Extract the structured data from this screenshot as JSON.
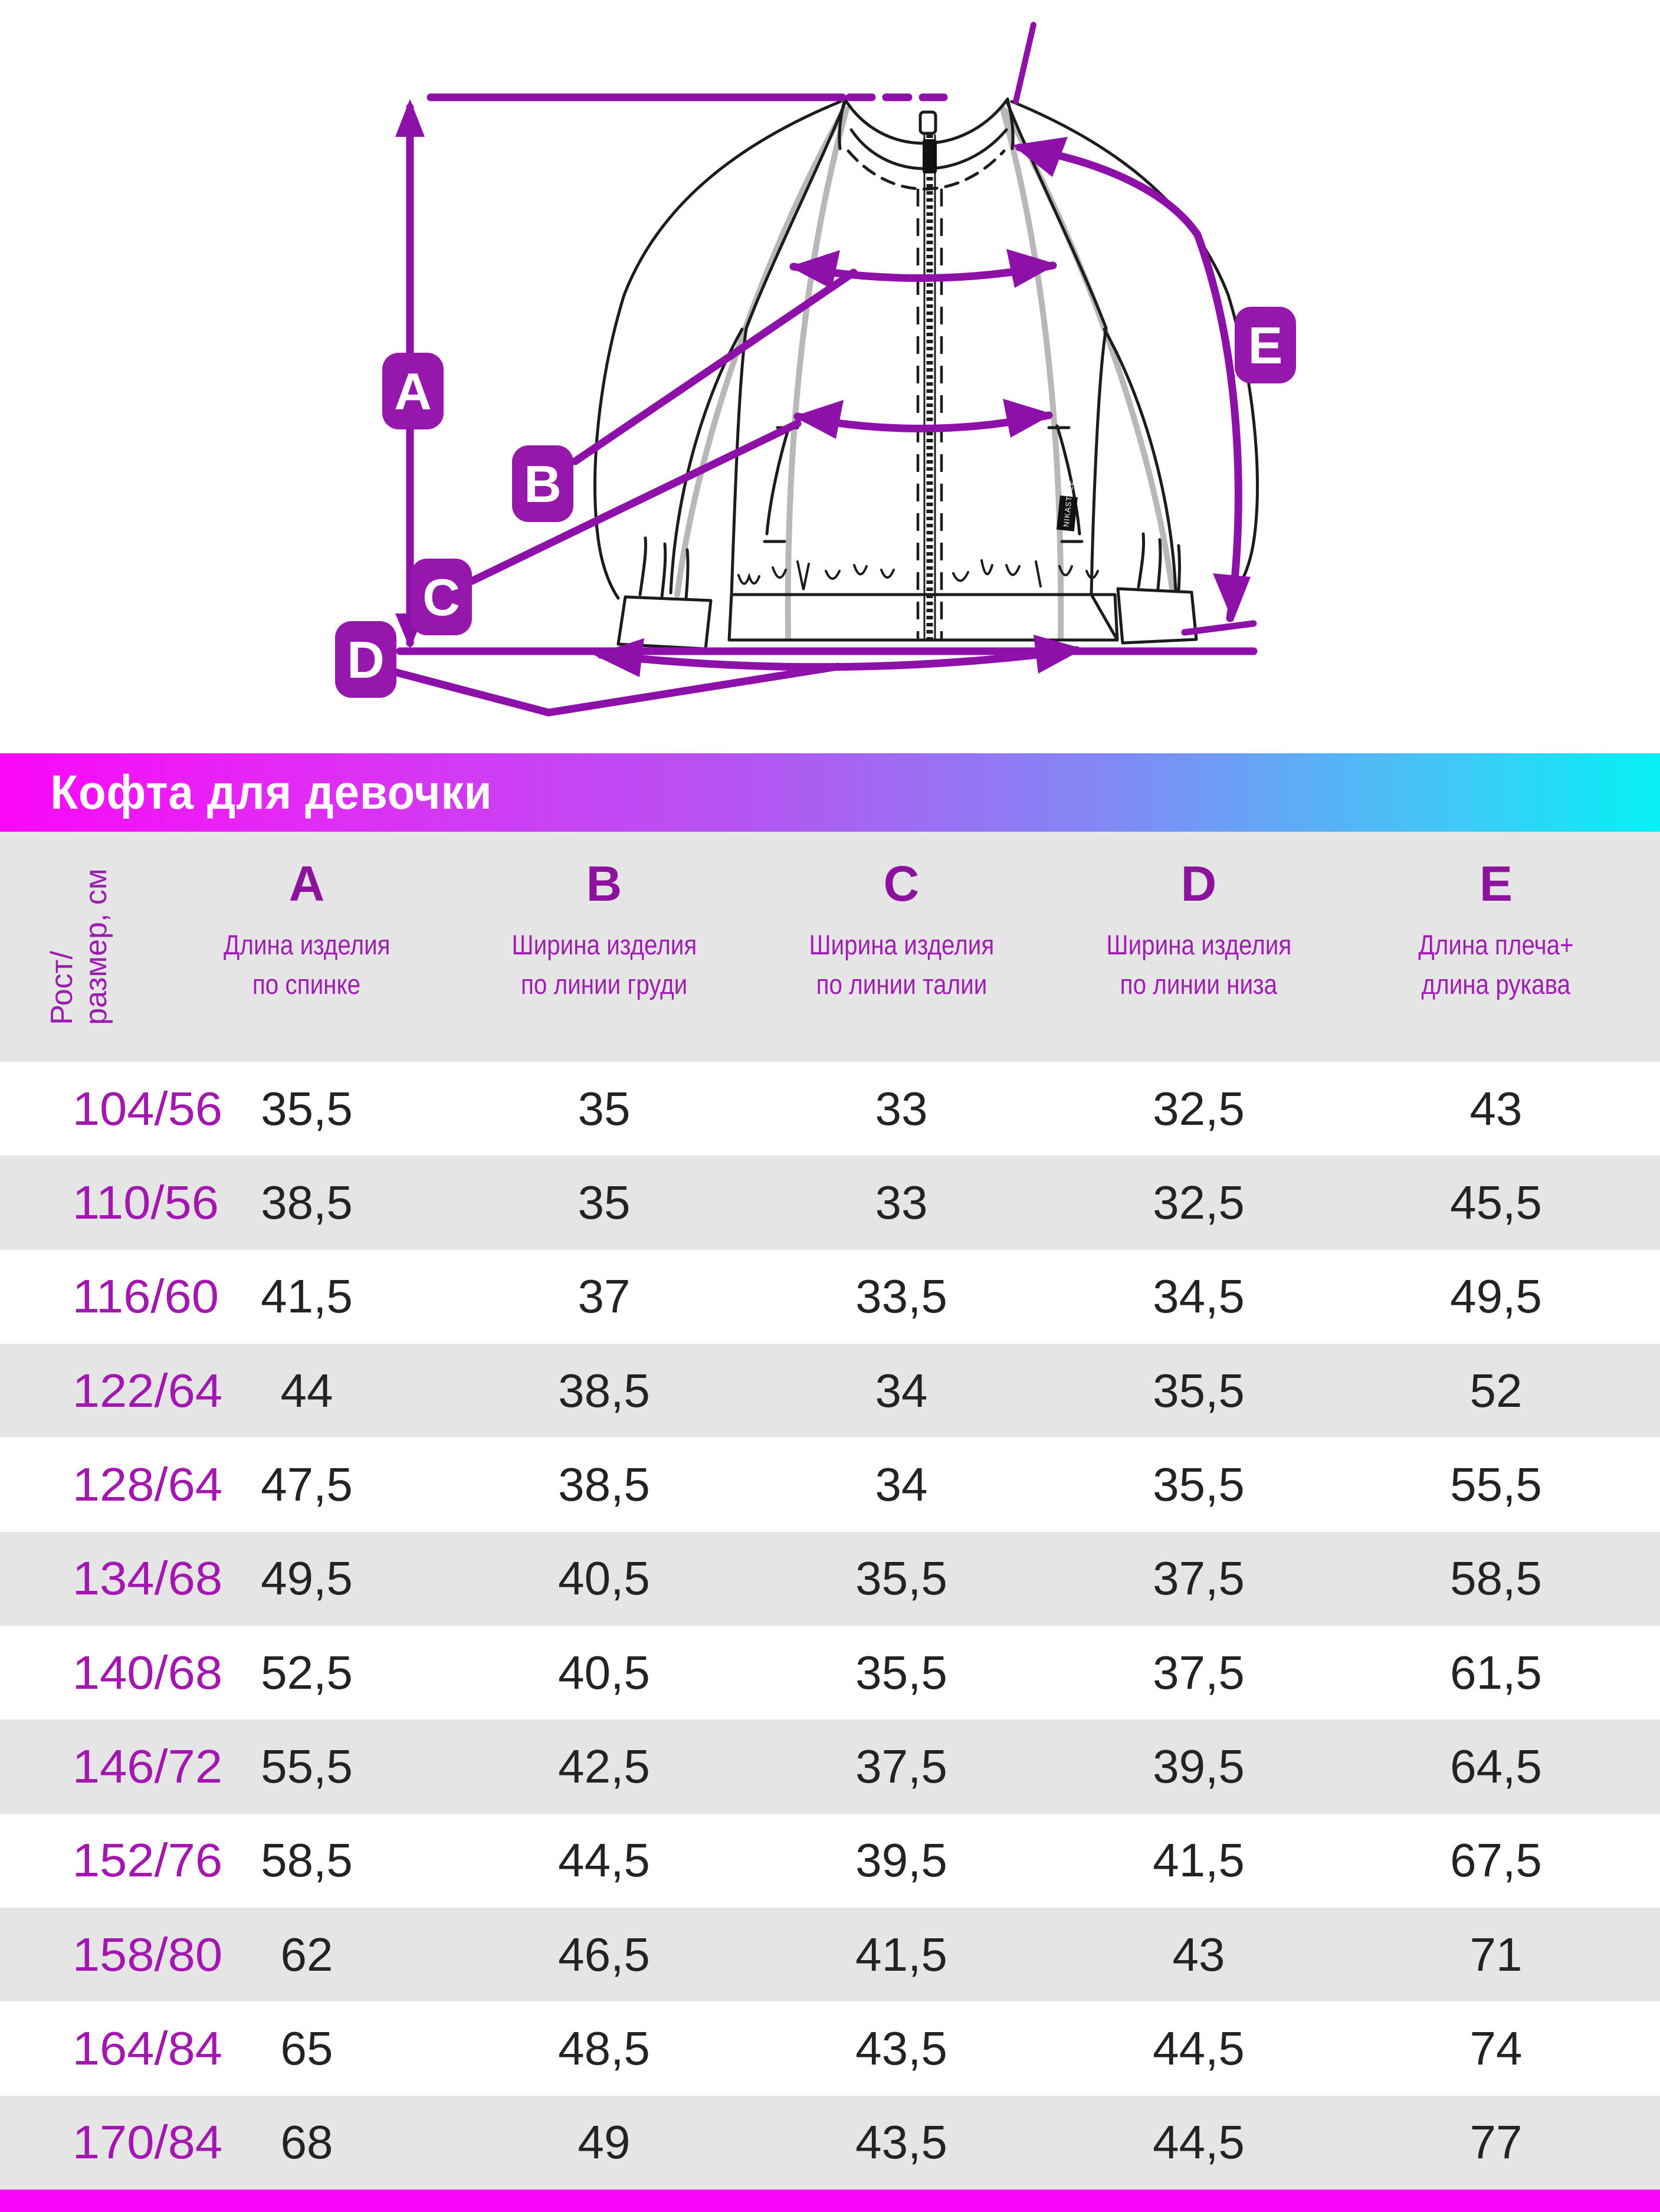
{
  "title": "Кофта для девочки",
  "badges": {
    "a": "A",
    "b": "B",
    "c": "C",
    "d": "D",
    "e": "E"
  },
  "garment_tag": "NIKASTYLE",
  "colors": {
    "accent_magenta": "#fa05fa",
    "accent_cyan": "#06f0f6",
    "annotation_purple": "#8d10a8",
    "badge_purple": "#9517ac",
    "row_gray": "#e6e5e5",
    "size_text": "#a317b0",
    "value_text": "#232323"
  },
  "table": {
    "row_header": {
      "line1": "Рост/",
      "line2": "размер, см"
    },
    "columns": [
      {
        "letter": "A",
        "desc1": "Длина изделия",
        "desc2": "по спинке"
      },
      {
        "letter": "B",
        "desc1": "Ширина изделия",
        "desc2": "по линии груди"
      },
      {
        "letter": "C",
        "desc1": "Ширина изделия",
        "desc2": "по линии талии"
      },
      {
        "letter": "D",
        "desc1": "Ширина изделия",
        "desc2": "по линии низа"
      },
      {
        "letter": "E",
        "desc1": "Длина плеча+",
        "desc2": "длина рукава"
      }
    ],
    "rows": [
      {
        "size": "104/56",
        "values": [
          "35,5",
          "35",
          "33",
          "32,5",
          "43"
        ]
      },
      {
        "size": "110/56",
        "values": [
          "38,5",
          "35",
          "33",
          "32,5",
          "45,5"
        ]
      },
      {
        "size": "116/60",
        "values": [
          "41,5",
          "37",
          "33,5",
          "34,5",
          "49,5"
        ]
      },
      {
        "size": "122/64",
        "values": [
          "44",
          "38,5",
          "34",
          "35,5",
          "52"
        ]
      },
      {
        "size": "128/64",
        "values": [
          "47,5",
          "38,5",
          "34",
          "35,5",
          "55,5"
        ]
      },
      {
        "size": "134/68",
        "values": [
          "49,5",
          "40,5",
          "35,5",
          "37,5",
          "58,5"
        ]
      },
      {
        "size": "140/68",
        "values": [
          "52,5",
          "40,5",
          "35,5",
          "37,5",
          "61,5"
        ]
      },
      {
        "size": "146/72",
        "values": [
          "55,5",
          "42,5",
          "37,5",
          "39,5",
          "64,5"
        ]
      },
      {
        "size": "152/76",
        "values": [
          "58,5",
          "44,5",
          "39,5",
          "41,5",
          "67,5"
        ]
      },
      {
        "size": "158/80",
        "values": [
          "62",
          "46,5",
          "41,5",
          "43",
          "71"
        ]
      },
      {
        "size": "164/84",
        "values": [
          "65",
          "48,5",
          "43,5",
          "44,5",
          "74"
        ]
      },
      {
        "size": "170/84",
        "values": [
          "68",
          "49",
          "43,5",
          "44,5",
          "77"
        ]
      }
    ]
  }
}
